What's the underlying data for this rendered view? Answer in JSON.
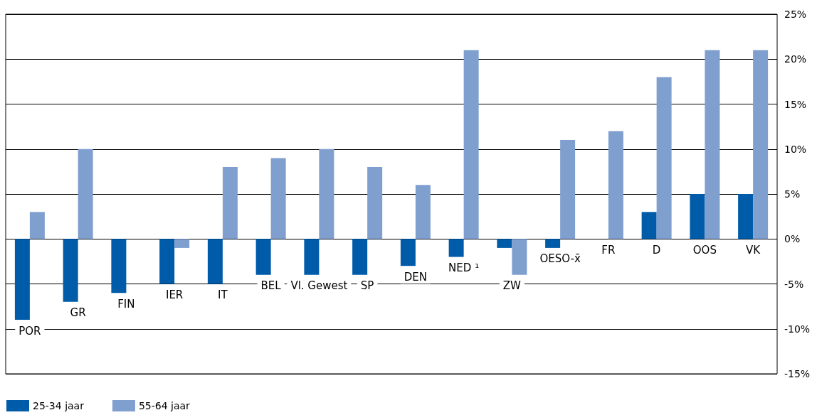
{
  "chart_data": {
    "type": "bar",
    "categories": [
      "POR",
      "GR",
      "FIN",
      "IER",
      "IT",
      "BEL",
      "Vl. Gewest",
      "SP",
      "DEN",
      "NED ¹",
      "ZW",
      "OESO-x̄",
      "FR",
      "D",
      "OOS",
      "VK"
    ],
    "series": [
      {
        "name": "25-34 jaar",
        "color": "#005ca9",
        "values": [
          -9,
          -7,
          -6,
          -5,
          -5,
          -4,
          -4,
          -4,
          -3,
          -2,
          -1,
          -1,
          null,
          3,
          5,
          5
        ]
      },
      {
        "name": "55-64 jaar",
        "color": "#7f9fcf",
        "values": [
          3,
          10,
          null,
          -1,
          8,
          9,
          10,
          8,
          6,
          21,
          -4,
          11,
          12,
          18,
          21,
          21
        ]
      }
    ],
    "ylim": [
      -15,
      25
    ],
    "yticks": [
      {
        "value": -15,
        "label": "-15%"
      },
      {
        "value": -10,
        "label": "-10%"
      },
      {
        "value": -5,
        "label": "-5%"
      },
      {
        "value": 0,
        "label": "0%"
      },
      {
        "value": 5,
        "label": "5%"
      },
      {
        "value": 10,
        "label": "10%"
      },
      {
        "value": 15,
        "label": "15%"
      },
      {
        "value": 20,
        "label": "20%"
      },
      {
        "value": 25,
        "label": "25%"
      }
    ],
    "grid": "y",
    "legend": "bottom left"
  }
}
